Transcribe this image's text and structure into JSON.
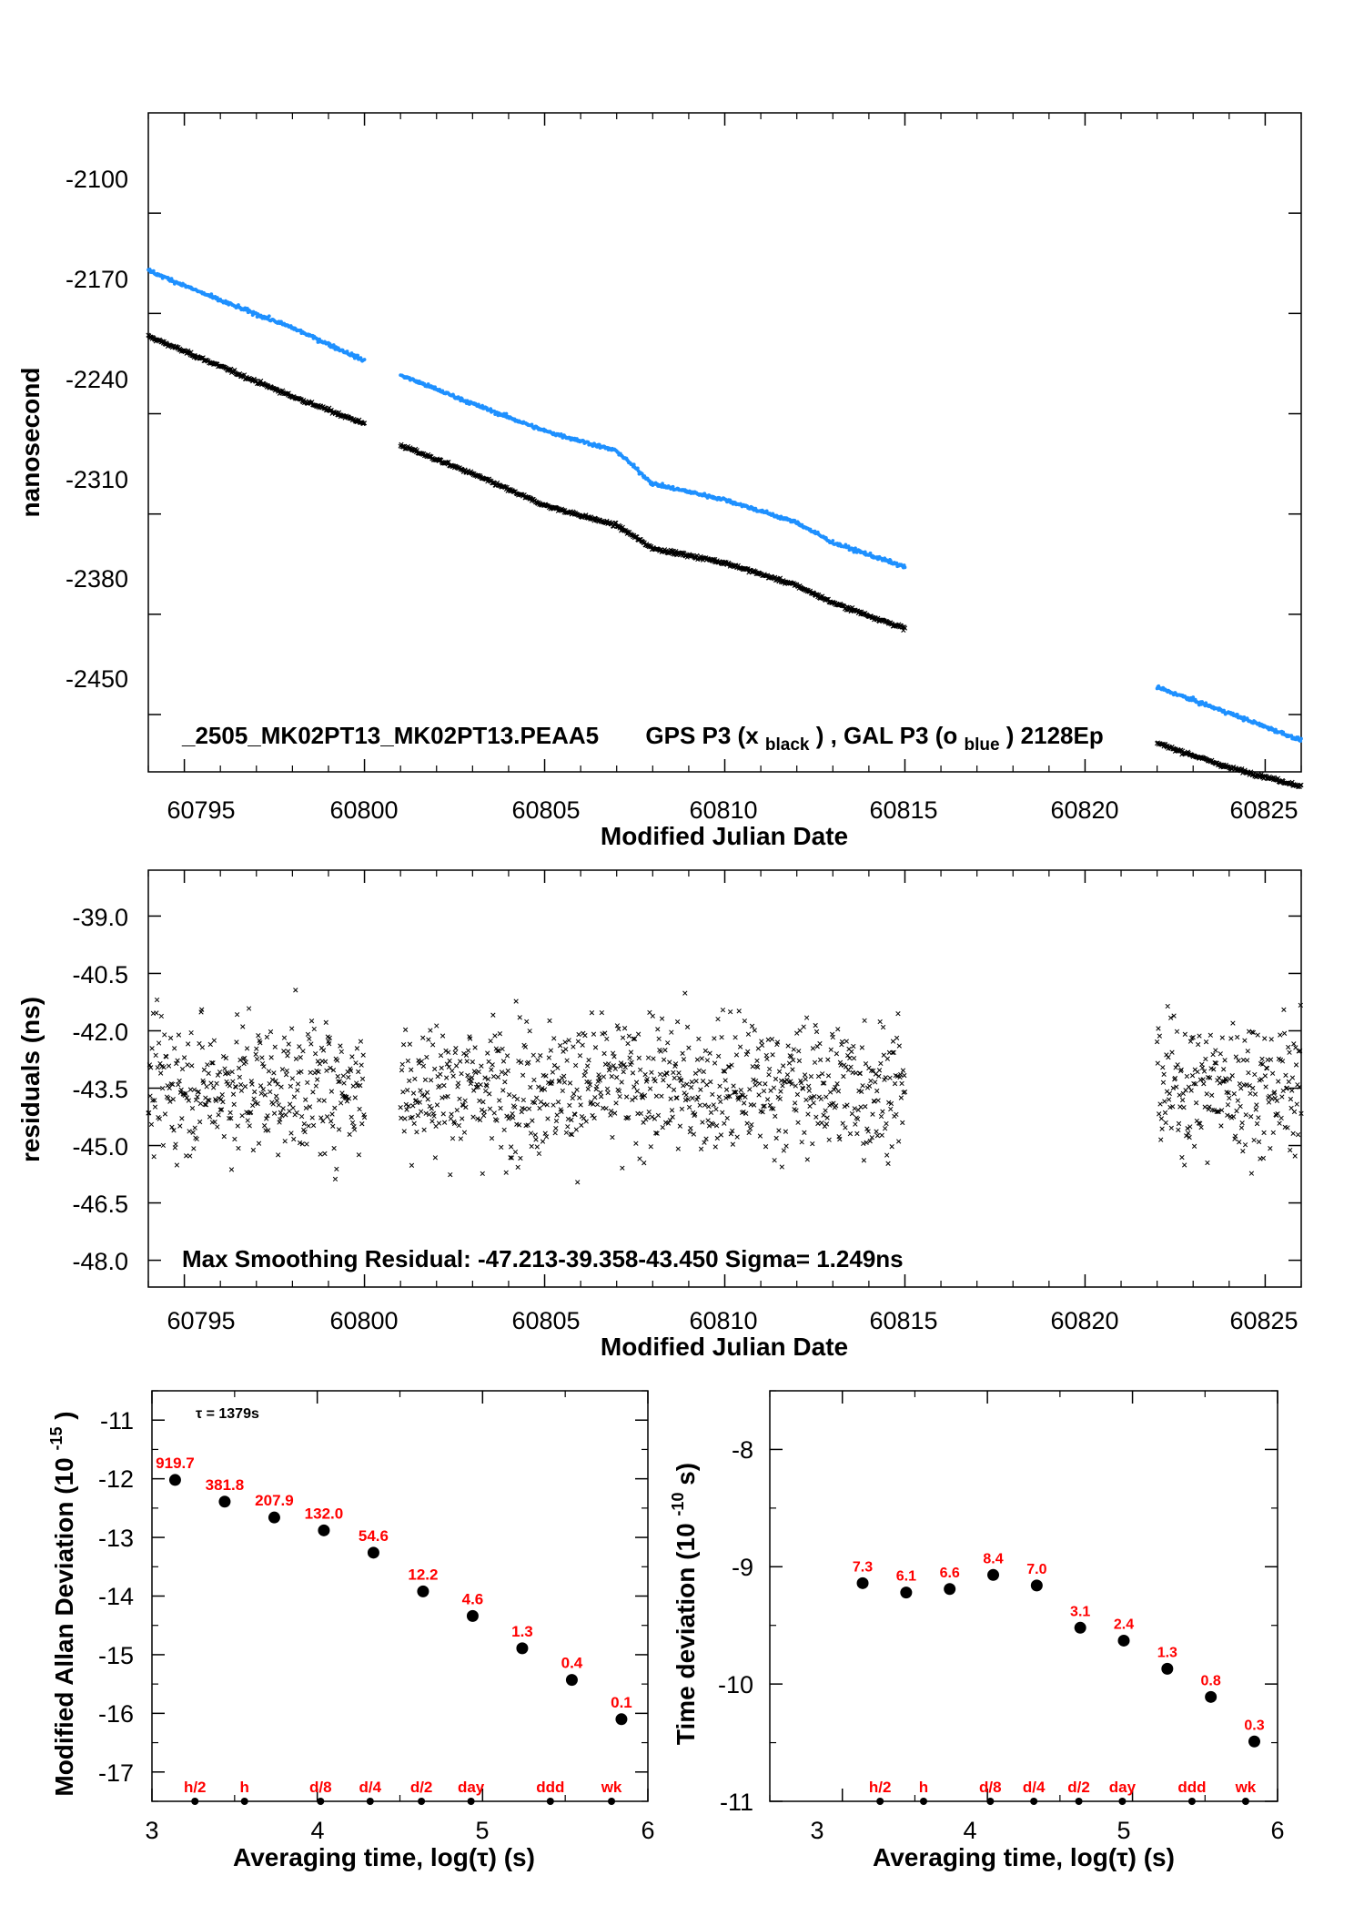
{
  "chart_data": [
    {
      "type": "scatter",
      "id": "phase",
      "title": "_2505_MK02PT13_MK02PT13.PEAA5     GPS P3 (x_black) ,  GAL P3 (o_blue)  2128Ep",
      "annotation": {
        "file": "_2505_MK02PT13_MK02PT13.PEAA5",
        "gps": "GPS P3 (x",
        "gps_sub": "black",
        "sep": ") ,  GAL P3 (o",
        "gal_sub": "blue",
        "tail": ")  2128Ep"
      },
      "xlabel": "Modified Julian Date",
      "ylabel": "nanosecond",
      "xlim": [
        60794,
        60826
      ],
      "ylim": [
        -2490,
        -2030
      ],
      "xticks": [
        "60795",
        "60800",
        "60805",
        "60810",
        "60815",
        "60820",
        "60825"
      ],
      "yticks": [
        "-2100",
        "-2170",
        "-2240",
        "-2310",
        "-2380",
        "-2450"
      ],
      "series": [
        {
          "marker": "x",
          "color": "#000000",
          "segments": [
            {
              "x": [
                60794.0,
                60796.0,
                60798.0,
                60800.0
              ],
              "y": [
                -2186,
                -2207,
                -2228,
                -2247
              ]
            },
            {
              "x": [
                60801.0,
                60803.0,
                60805.0,
                60807.0,
                60808.0,
                60810.0,
                60812.0,
                60813.0,
                60815.0
              ],
              "y": [
                -2262,
                -2282,
                -2304,
                -2318,
                -2334,
                -2344,
                -2360,
                -2372,
                -2390
              ]
            },
            {
              "x": [
                60822.0,
                60824.0,
                60826.0
              ],
              "y": [
                -2470,
                -2487,
                -2500
              ]
            }
          ]
        },
        {
          "marker": "o",
          "color": "#1e90ff",
          "segments": [
            {
              "x": [
                60794.0,
                60796.0,
                60798.0,
                60800.0
              ],
              "y": [
                -2140,
                -2161,
                -2180,
                -2203
              ]
            },
            {
              "x": [
                60801.0,
                60803.0,
                60805.0,
                60807.0,
                60808.0,
                60810.0,
                60812.0,
                60813.0,
                60815.0
              ],
              "y": [
                -2213,
                -2233,
                -2252,
                -2266,
                -2289,
                -2300,
                -2316,
                -2330,
                -2347
              ]
            },
            {
              "x": [
                60822.0,
                60824.0,
                60826.0
              ],
              "y": [
                -2431,
                -2449,
                -2468
              ]
            }
          ]
        }
      ]
    },
    {
      "type": "scatter",
      "id": "residuals",
      "annotation": "Max Smoothing Residual: -47.213-39.358-43.450  Sigma= 1.249ns",
      "xlabel": "Modified Julian Date",
      "ylabel": "residuals (ns)",
      "xlim": [
        60794,
        60826
      ],
      "ylim": [
        -48.7,
        -37.8
      ],
      "xticks": [
        "60795",
        "60800",
        "60805",
        "60810",
        "60815",
        "60820",
        "60825"
      ],
      "yticks": [
        "-39.0",
        "-40.5",
        "-42.0",
        "-43.5",
        "-45.0",
        "-46.5",
        "-48.0"
      ],
      "series": [
        {
          "marker": "x",
          "color": "#000000",
          "segments": [
            {
              "x": [
                60794.0,
                60800.0
              ],
              "mean": -43.45,
              "sigma": 1.25
            },
            {
              "x": [
                60801.0,
                60815.0
              ],
              "mean": -43.45,
              "sigma": 1.25
            },
            {
              "x": [
                60822.0,
                60826.0
              ],
              "mean": -43.45,
              "sigma": 1.25
            }
          ],
          "range": [
            -47.213,
            -39.358
          ]
        }
      ]
    },
    {
      "type": "scatter",
      "id": "mdev",
      "annotation": "τ = 1379s",
      "xlabel": "Averaging time, log(τ) (s)",
      "ylabel": "Modified Allan Deviation (10^-15)",
      "ylabel_main": "Modified Allan Deviation (10",
      "ylabel_sup": "-15",
      "ylabel_tail": ")",
      "xlim": [
        3,
        6
      ],
      "ylim": [
        -17.5,
        -10.5
      ],
      "xticks": [
        "3",
        "4",
        "5",
        "6"
      ],
      "yticks": [
        "-11",
        "-12",
        "-13",
        "-14",
        "-15",
        "-16",
        "-17"
      ],
      "points": {
        "x": [
          3.14,
          3.44,
          3.74,
          4.04,
          4.34,
          4.64,
          4.94,
          5.24,
          5.54,
          5.84
        ],
        "y": [
          -12.02,
          -12.39,
          -12.66,
          -12.88,
          -13.26,
          -13.92,
          -14.34,
          -14.89,
          -15.43,
          -16.1
        ],
        "labels": [
          "919.7",
          "381.8",
          "207.9",
          "132.0",
          "54.6",
          "12.2",
          "4.6",
          "1.3",
          "0.4",
          "0.1"
        ]
      },
      "markers": {
        "x": [
          3.26,
          3.56,
          4.02,
          4.32,
          4.63,
          4.93,
          5.41,
          5.78
        ],
        "labels": [
          "h/2",
          "h",
          "d/8",
          "d/4",
          "d/2",
          "day",
          "ddd",
          "wk"
        ]
      }
    },
    {
      "type": "scatter",
      "id": "tdev",
      "xlabel": "Averaging time, log(τ) (s)",
      "ylabel": "Time deviation (10^-10 s)",
      "ylabel_main": "Time deviation (10",
      "ylabel_sup": "-10",
      "ylabel_tail": " s)",
      "xlim": [
        2.5,
        6
      ],
      "ylim": [
        -11,
        -7.5
      ],
      "xticks": [
        "3",
        "4",
        "5",
        "6"
      ],
      "yticks": [
        "-8",
        "-9",
        "-10",
        "-11"
      ],
      "points": {
        "x": [
          3.14,
          3.44,
          3.74,
          4.04,
          4.34,
          4.64,
          4.94,
          5.24,
          5.54,
          5.84
        ],
        "y": [
          -9.14,
          -9.22,
          -9.19,
          -9.07,
          -9.16,
          -9.52,
          -9.63,
          -9.87,
          -10.11,
          -10.49
        ],
        "labels": [
          "7.3",
          "6.1",
          "6.6",
          "8.4",
          "7.0",
          "3.1",
          "2.4",
          "1.3",
          "0.8",
          "0.3"
        ]
      },
      "markers": {
        "x": [
          3.26,
          3.56,
          4.02,
          4.32,
          4.63,
          4.93,
          5.41,
          5.78
        ],
        "labels": [
          "h/2",
          "h",
          "d/8",
          "d/4",
          "d/2",
          "day",
          "ddd",
          "wk"
        ]
      }
    }
  ]
}
